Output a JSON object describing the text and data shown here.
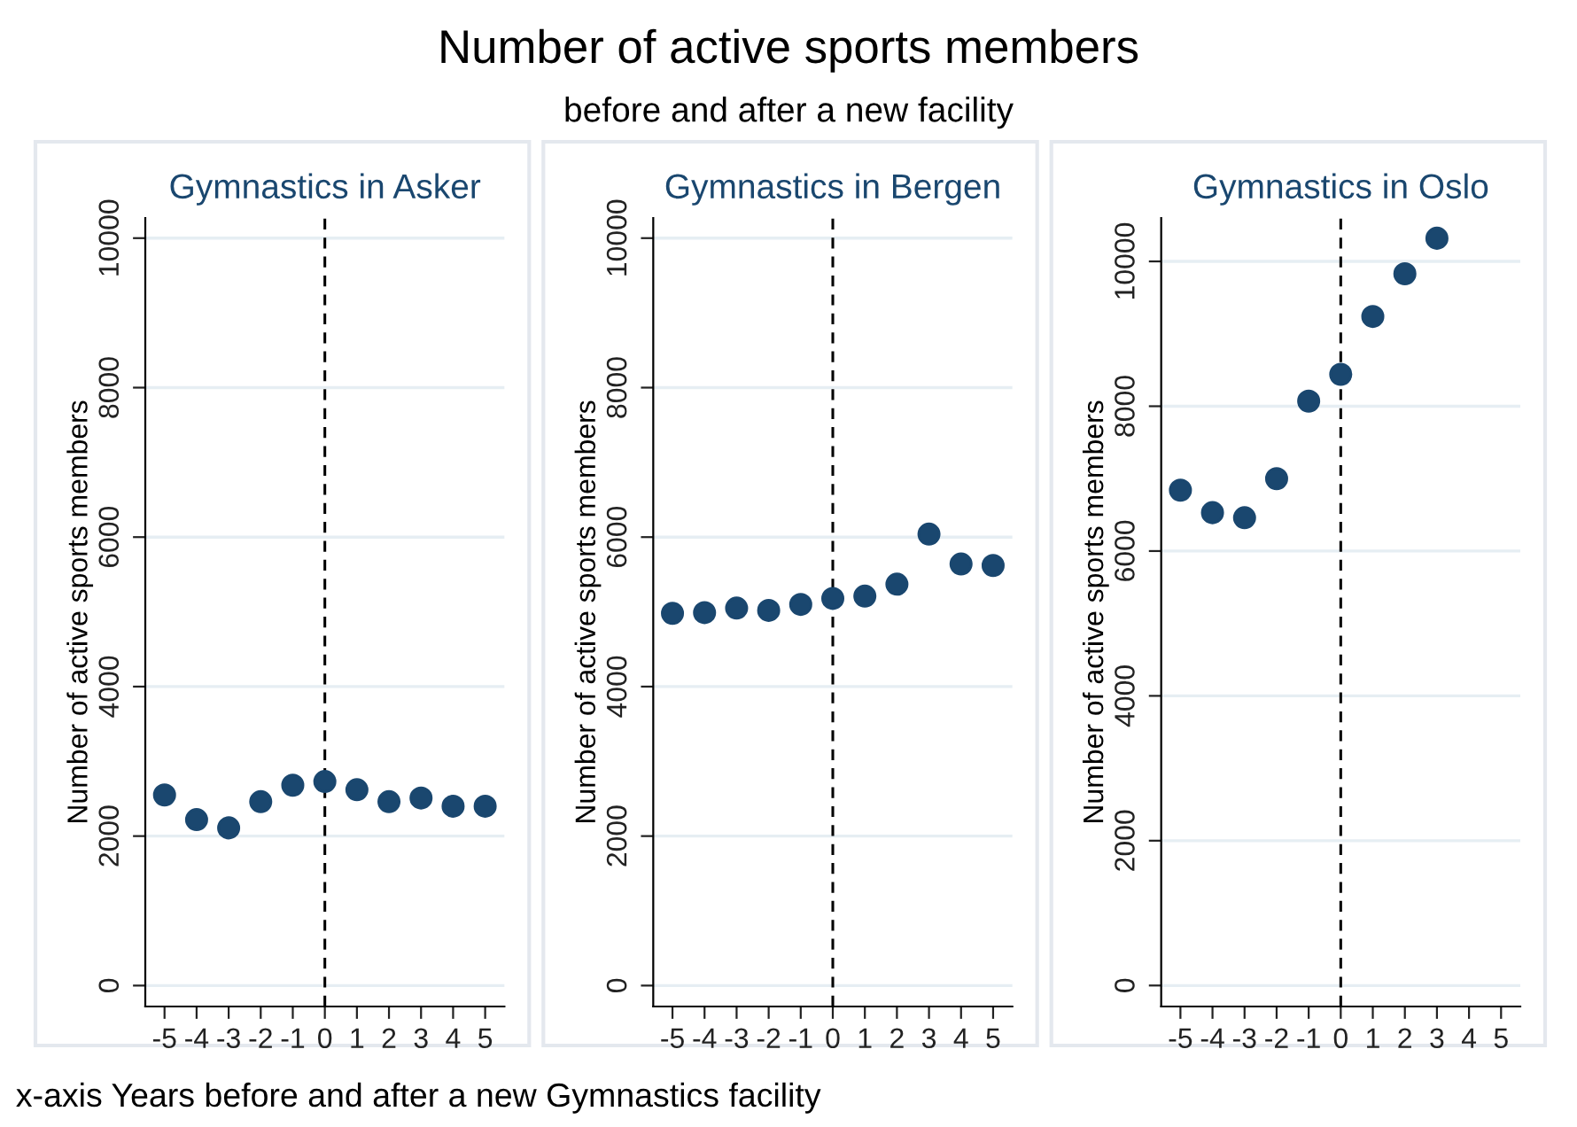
{
  "chart_data": [
    {
      "type": "scatter",
      "title": "Gymnastics in Asker",
      "ylabel": "Number of active sports members",
      "annotations": [
        "Number of active sports members",
        "before and after a new facility",
        "x-axis Years before and after a new Gymnastics facility"
      ],
      "x": [
        -5,
        -4,
        -3,
        -2,
        -1,
        0,
        1,
        2,
        3,
        4,
        5
      ],
      "series": [
        {
          "color": "#1a476f",
          "values": [
            2550,
            2220,
            2110,
            2460,
            2680,
            2730,
            2620,
            2460,
            2510,
            2400,
            2400
          ]
        }
      ],
      "xlim": [
        -5.6,
        5.6
      ],
      "xticks": [
        -5,
        -4,
        -3,
        -2,
        -1,
        0,
        1,
        2,
        3,
        4,
        5
      ],
      "ylim": [
        -280,
        10270
      ],
      "yticks": [
        0,
        2000,
        4000,
        6000,
        8000,
        10000
      ],
      "grid": "y",
      "marker": "circle",
      "legend": false,
      "ref_lines": [
        {
          "axis": "x",
          "value": 0,
          "color": "#000000",
          "line_style": "dashed"
        }
      ]
    },
    {
      "type": "scatter",
      "title": "Gymnastics in Bergen",
      "ylabel": "Number of active sports members",
      "x": [
        -5,
        -4,
        -3,
        -2,
        -1,
        0,
        1,
        2,
        3,
        4,
        5
      ],
      "series": [
        {
          "color": "#1a476f",
          "values": [
            4980,
            4990,
            5050,
            5020,
            5100,
            5180,
            5210,
            5370,
            6040,
            5640,
            5620
          ]
        }
      ],
      "xlim": [
        -5.6,
        5.6
      ],
      "xticks": [
        -5,
        -4,
        -3,
        -2,
        -1,
        0,
        1,
        2,
        3,
        4,
        5
      ],
      "ylim": [
        -280,
        10270
      ],
      "yticks": [
        0,
        2000,
        4000,
        6000,
        8000,
        10000
      ],
      "grid": "y",
      "marker": "circle",
      "legend": false,
      "ref_lines": [
        {
          "axis": "x",
          "value": 0,
          "color": "#000000",
          "line_style": "dashed"
        }
      ]
    },
    {
      "type": "scatter",
      "title": "Gymnastics in Oslo",
      "ylabel": "Number of active sports members",
      "x": [
        -5,
        -4,
        -3,
        -2,
        -1,
        0,
        1,
        2,
        3
      ],
      "series": [
        {
          "color": "#1a476f",
          "values": [
            6840,
            6530,
            6460,
            7000,
            8070,
            8440,
            9240,
            9830,
            10320
          ]
        }
      ],
      "xlim": [
        -5.6,
        5.6
      ],
      "xticks": [
        -5,
        -4,
        -3,
        -2,
        -1,
        0,
        1,
        2,
        3,
        4,
        5
      ],
      "ylim": [
        -290,
        10600
      ],
      "yticks": [
        0,
        2000,
        4000,
        6000,
        8000,
        10000
      ],
      "grid": "y",
      "marker": "circle",
      "legend": false,
      "ref_lines": [
        {
          "axis": "x",
          "value": 0,
          "color": "#000000",
          "line_style": "dashed"
        }
      ]
    }
  ]
}
